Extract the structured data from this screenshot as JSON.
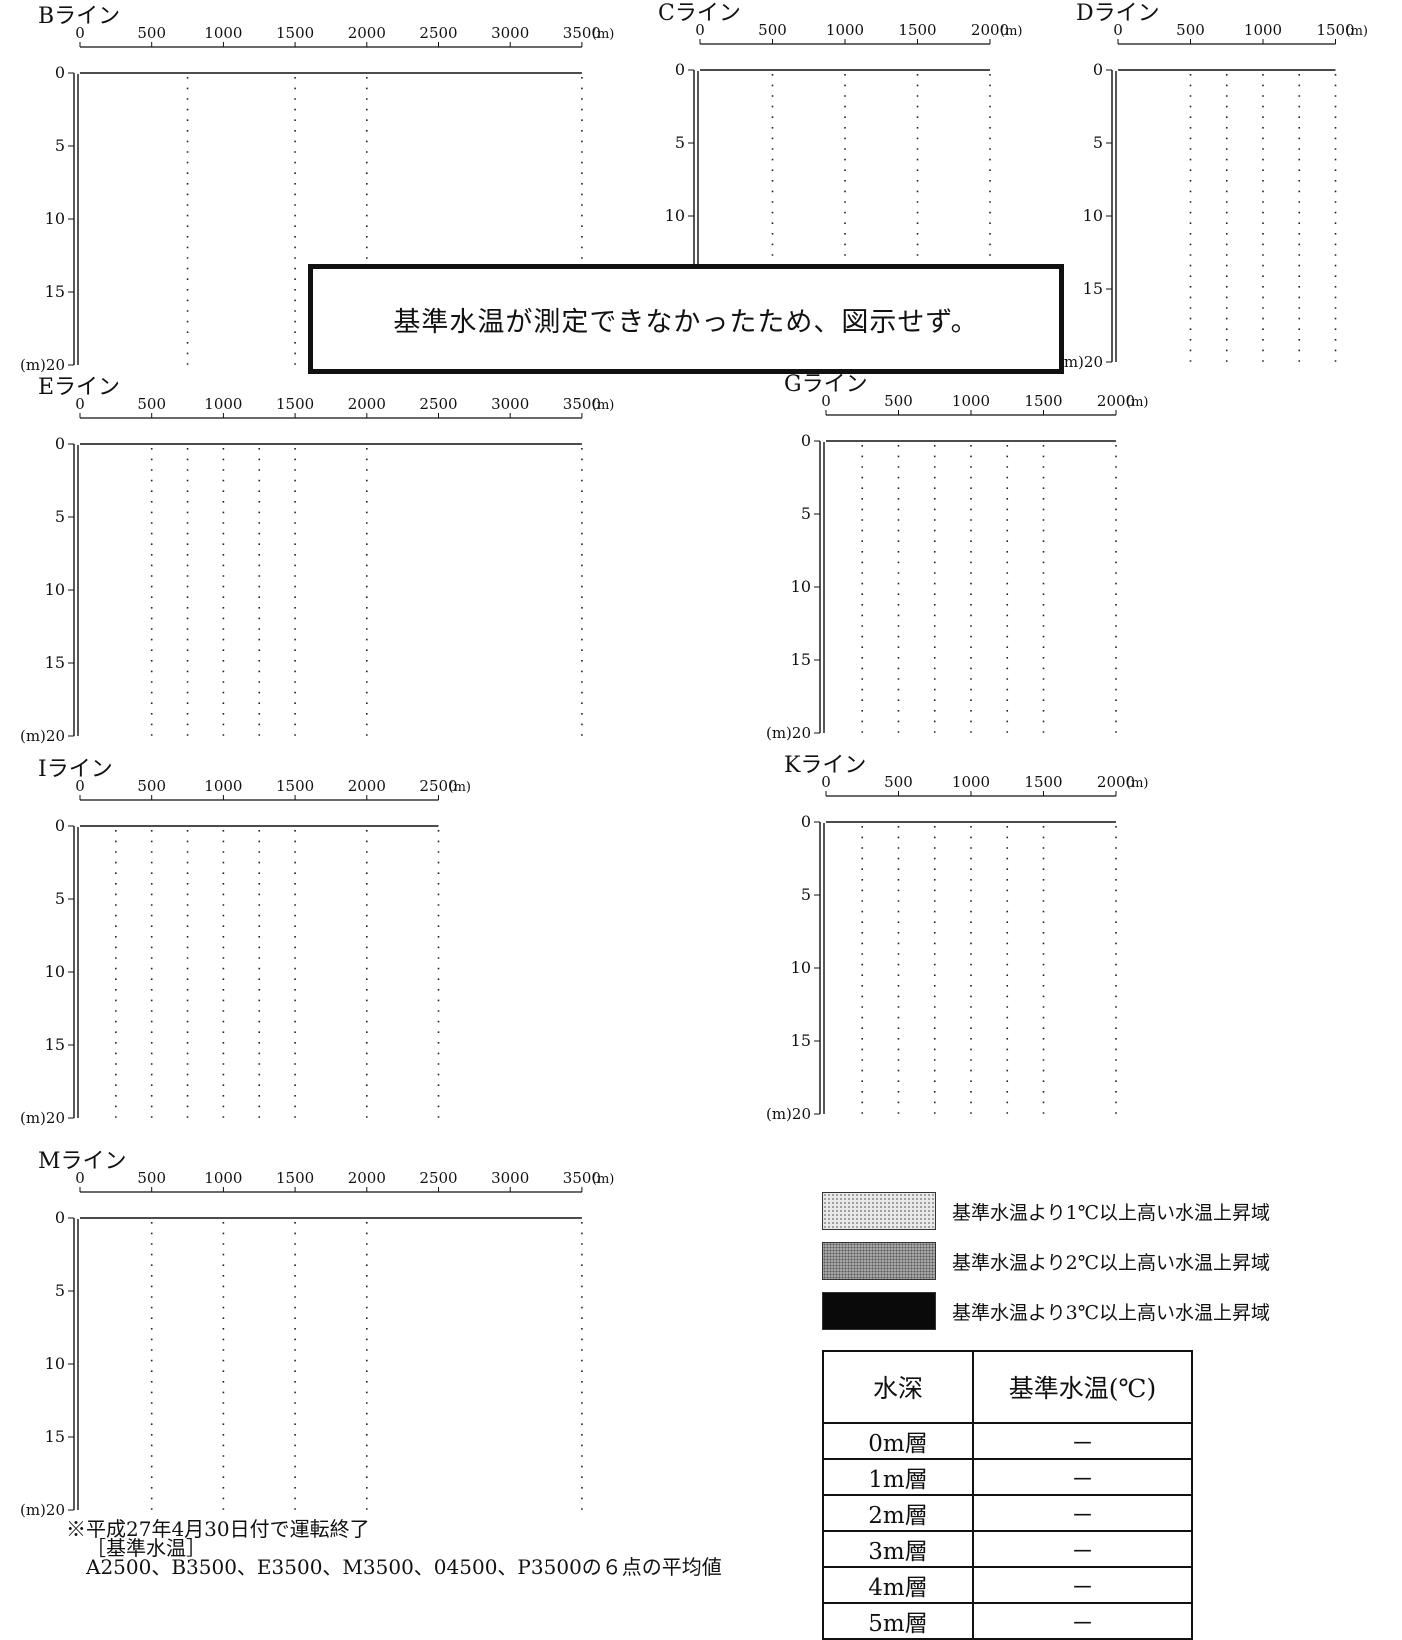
{
  "sections": [
    {
      "id": "B",
      "label": "Bライン",
      "ticks": [
        "0",
        "500",
        "1000",
        "1500",
        "2000",
        "2500",
        "3000",
        "3500"
      ],
      "x_unit": "(m)",
      "stations": [
        0,
        750,
        1500,
        2000,
        3500
      ]
    },
    {
      "id": "C",
      "label": "Cライン",
      "ticks": [
        "0",
        "500",
        "1000",
        "1500",
        "2000"
      ],
      "x_unit": "(m)",
      "stations": [
        0,
        500,
        1000,
        1500,
        2000
      ]
    },
    {
      "id": "D",
      "label": "Dライン",
      "ticks": [
        "0",
        "500",
        "1000",
        "1500"
      ],
      "x_unit": "(m)",
      "stations": [
        0,
        500,
        750,
        1000,
        1250,
        1500
      ]
    },
    {
      "id": "E",
      "label": "Eライン",
      "ticks": [
        "0",
        "500",
        "1000",
        "1500",
        "2000",
        "2500",
        "3000",
        "3500"
      ],
      "x_unit": "(m)",
      "stations": [
        0,
        500,
        750,
        1000,
        1250,
        1500,
        2000,
        3500
      ]
    },
    {
      "id": "G",
      "label": "Gライン",
      "ticks": [
        "0",
        "500",
        "1000",
        "1500",
        "2000"
      ],
      "x_unit": "(m)",
      "stations": [
        0,
        250,
        500,
        750,
        1000,
        1250,
        1500,
        2000
      ]
    },
    {
      "id": "I",
      "label": "Iライン",
      "ticks": [
        "0",
        "500",
        "1000",
        "1500",
        "2000",
        "2500"
      ],
      "x_unit": "(m)",
      "stations": [
        0,
        250,
        500,
        750,
        1000,
        1250,
        1500,
        2000,
        2500
      ]
    },
    {
      "id": "K",
      "label": "Kライン",
      "ticks": [
        "0",
        "500",
        "1000",
        "1500",
        "2000"
      ],
      "x_unit": "(m)",
      "stations": [
        0,
        250,
        500,
        750,
        1000,
        1250,
        1500,
        2000
      ]
    },
    {
      "id": "M",
      "label": "Mライン",
      "ticks": [
        "0",
        "500",
        "1000",
        "1500",
        "2000",
        "2500",
        "3000",
        "3500"
      ],
      "x_unit": "(m)",
      "stations": [
        0,
        500,
        1000,
        1500,
        2000,
        3500
      ]
    }
  ],
  "depth_axis": {
    "ticks": [
      "0",
      "5",
      "10",
      "15"
    ],
    "last_tick": "(m)20",
    "min": 0,
    "max": 20
  },
  "notice": "基準水温が測定できなかったため、図示せず。",
  "legend": [
    {
      "label": "基準水温より1℃以上高い水温上昇域"
    },
    {
      "label": "基準水温より2℃以上高い水温上昇域"
    },
    {
      "label": "基準水温より3℃以上高い水温上昇域"
    }
  ],
  "reference_table": {
    "headers": [
      "水深",
      "基準水温(℃)"
    ],
    "rows": [
      {
        "depth": "0m層",
        "temp": "－"
      },
      {
        "depth": "1m層",
        "temp": "－"
      },
      {
        "depth": "2m層",
        "temp": "－"
      },
      {
        "depth": "3m層",
        "temp": "－"
      },
      {
        "depth": "4m層",
        "temp": "－"
      },
      {
        "depth": "5m層",
        "temp": "－"
      }
    ]
  },
  "notes": [
    "※平成27年4月30日付で運転終了",
    "［基準水温］",
    "A2500、B3500、E3500、M3500、04500、P3500の６点の平均値"
  ]
}
